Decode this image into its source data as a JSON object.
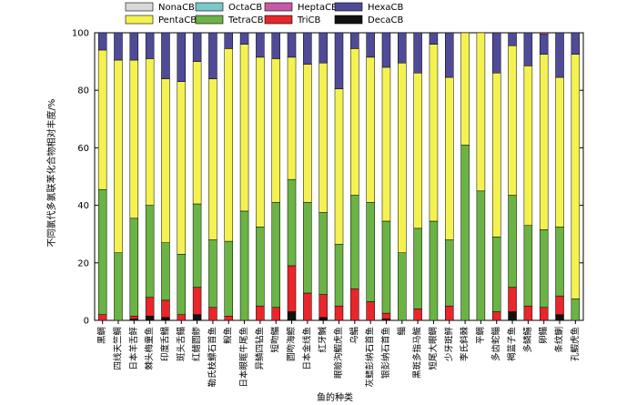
{
  "chart_data": {
    "type": "bar",
    "stacked": true,
    "title": "",
    "xlabel": "鱼的种类",
    "ylabel": "不同氯代多氯联苯化合物相对丰度/%",
    "ylim": [
      0,
      100
    ],
    "yticks": [
      "0",
      "20",
      "40",
      "60",
      "80",
      "100"
    ],
    "legend_position": "top",
    "categories": [
      "黑鲷",
      "四线天竺鲷",
      "日本羊舌鲆",
      "棘头梅童鱼",
      "印度舌鳎",
      "斑头舌鳎",
      "红鳍圆鲹",
      "勒氏枝鳔石首鱼",
      "鲵鱼",
      "日本眼眶牛尾鱼",
      "异鳞四钻鱼",
      "短吻鲾",
      "圆吻海鰶",
      "日本金线鱼",
      "红牙鰔",
      "眼瞼沟鰕虎鱼",
      "乌鲳",
      "灰鳍彭纳石首鱼",
      "银彭纳石首鱼",
      "鲻",
      "黑斑多指马鲅",
      "短尾大眼鲷",
      "少牙斑鲆",
      "李氏斜棘",
      "平鲷",
      "多齿蛇鲻",
      "褐蓝子鱼",
      "多鳞鱚",
      "卵鳎",
      "条纹鯻",
      "孔鰕虎鱼"
    ],
    "series": [
      {
        "name": "DecaCB",
        "color": "#111111",
        "values": [
          0,
          0,
          0.5,
          1.5,
          1,
          0,
          2,
          0,
          0,
          0,
          0,
          0,
          3,
          0,
          1,
          0,
          0,
          0,
          0.5,
          0,
          0,
          0,
          0,
          0,
          0,
          0,
          3,
          0,
          0,
          2,
          0
        ]
      },
      {
        "name": "TriCB",
        "color": "#e8262b",
        "values": [
          2,
          0,
          1,
          6.5,
          6,
          2,
          9.5,
          4.5,
          1.5,
          0,
          5,
          4.5,
          16,
          9.5,
          8,
          5,
          11,
          6.5,
          2,
          0,
          4,
          0,
          5,
          0,
          0,
          3,
          8.5,
          5,
          4.5,
          6.5,
          0
        ]
      },
      {
        "name": "TetraCB",
        "color": "#6ab344",
        "values": [
          43.5,
          23.5,
          34,
          32,
          20,
          21,
          29,
          23.5,
          26,
          38,
          27.5,
          36.5,
          30,
          31.5,
          28.5,
          21.5,
          32.5,
          34.5,
          32,
          23.5,
          28,
          34.5,
          23,
          61,
          45,
          26,
          32,
          28,
          27,
          24,
          7.5
        ]
      },
      {
        "name": "PentaCB",
        "color": "#f4f251",
        "values": [
          48.5,
          67,
          55,
          51,
          57,
          60,
          49.5,
          56,
          67,
          58,
          59,
          50,
          42.5,
          48,
          52,
          54,
          51,
          50.5,
          53.5,
          66,
          54,
          61.5,
          56.5,
          39,
          55,
          57,
          52,
          55.5,
          61,
          52,
          85
        ]
      },
      {
        "name": "HexaCB",
        "color": "#4f4b97",
        "values": [
          6,
          9.5,
          9.5,
          9,
          16,
          17,
          10,
          16,
          5.5,
          4,
          8.5,
          9,
          8.5,
          11,
          10.5,
          19.5,
          5.5,
          8.5,
          12,
          10.5,
          14,
          4,
          15.5,
          0,
          0,
          14,
          4.5,
          11.5,
          7,
          15.5,
          7.5
        ]
      },
      {
        "name": "HeptaCB",
        "color": "#c95aa5",
        "values": [
          0,
          0,
          0,
          0,
          0,
          0,
          0,
          0,
          0,
          0,
          0,
          0,
          0,
          0,
          0,
          0,
          0,
          0,
          0,
          0,
          0,
          0,
          0,
          0,
          0,
          0,
          0,
          0,
          0.5,
          0,
          0
        ]
      },
      {
        "name": "OctaCB",
        "color": "#79c9c9",
        "values": [
          0,
          0,
          0,
          0,
          0,
          0,
          0,
          0,
          0,
          0,
          0,
          0,
          0,
          0,
          0,
          0,
          0,
          0,
          0,
          0,
          0,
          0,
          0,
          0,
          0,
          0,
          0,
          0,
          0,
          0,
          0
        ]
      },
      {
        "name": "NonaCB",
        "color": "#d9d9d9",
        "values": [
          0,
          0,
          0,
          0,
          0,
          0,
          0,
          0,
          0,
          0,
          0,
          0,
          0,
          0,
          0,
          0,
          0,
          0,
          0,
          0,
          0,
          0,
          0,
          0,
          0,
          0,
          0,
          0,
          0,
          0,
          0
        ]
      }
    ],
    "legend": [
      "NonaCB",
      "OctaCB",
      "HeptaCB",
      "HexaCB",
      "PentaCB",
      "TetraCB",
      "TriCB",
      "DecaCB"
    ]
  }
}
